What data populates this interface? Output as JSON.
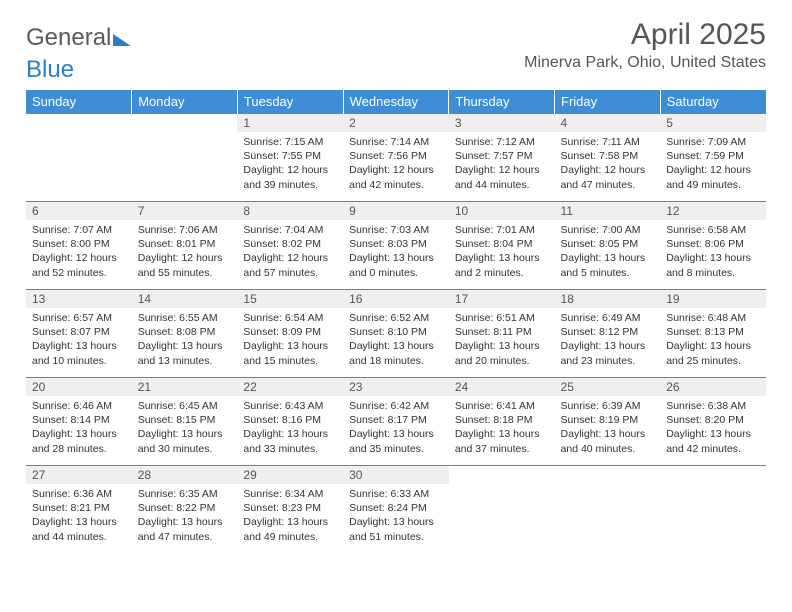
{
  "logo": {
    "text_gray": "General",
    "text_blue": "Blue"
  },
  "title": {
    "month": "April 2025",
    "location": "Minerva Park, Ohio, United States"
  },
  "colors": {
    "header_bg": "#3f8dd6",
    "daynum_bg": "#efefef",
    "border": "#3f8dd6"
  },
  "weekdays": [
    "Sunday",
    "Monday",
    "Tuesday",
    "Wednesday",
    "Thursday",
    "Friday",
    "Saturday"
  ],
  "weeks": [
    [
      {
        "empty": true
      },
      {
        "empty": true
      },
      {
        "day": "1",
        "sunrise": "Sunrise: 7:15 AM",
        "sunset": "Sunset: 7:55 PM",
        "dl1": "Daylight: 12 hours",
        "dl2": "and 39 minutes."
      },
      {
        "day": "2",
        "sunrise": "Sunrise: 7:14 AM",
        "sunset": "Sunset: 7:56 PM",
        "dl1": "Daylight: 12 hours",
        "dl2": "and 42 minutes."
      },
      {
        "day": "3",
        "sunrise": "Sunrise: 7:12 AM",
        "sunset": "Sunset: 7:57 PM",
        "dl1": "Daylight: 12 hours",
        "dl2": "and 44 minutes."
      },
      {
        "day": "4",
        "sunrise": "Sunrise: 7:11 AM",
        "sunset": "Sunset: 7:58 PM",
        "dl1": "Daylight: 12 hours",
        "dl2": "and 47 minutes."
      },
      {
        "day": "5",
        "sunrise": "Sunrise: 7:09 AM",
        "sunset": "Sunset: 7:59 PM",
        "dl1": "Daylight: 12 hours",
        "dl2": "and 49 minutes."
      }
    ],
    [
      {
        "day": "6",
        "sunrise": "Sunrise: 7:07 AM",
        "sunset": "Sunset: 8:00 PM",
        "dl1": "Daylight: 12 hours",
        "dl2": "and 52 minutes."
      },
      {
        "day": "7",
        "sunrise": "Sunrise: 7:06 AM",
        "sunset": "Sunset: 8:01 PM",
        "dl1": "Daylight: 12 hours",
        "dl2": "and 55 minutes."
      },
      {
        "day": "8",
        "sunrise": "Sunrise: 7:04 AM",
        "sunset": "Sunset: 8:02 PM",
        "dl1": "Daylight: 12 hours",
        "dl2": "and 57 minutes."
      },
      {
        "day": "9",
        "sunrise": "Sunrise: 7:03 AM",
        "sunset": "Sunset: 8:03 PM",
        "dl1": "Daylight: 13 hours",
        "dl2": "and 0 minutes."
      },
      {
        "day": "10",
        "sunrise": "Sunrise: 7:01 AM",
        "sunset": "Sunset: 8:04 PM",
        "dl1": "Daylight: 13 hours",
        "dl2": "and 2 minutes."
      },
      {
        "day": "11",
        "sunrise": "Sunrise: 7:00 AM",
        "sunset": "Sunset: 8:05 PM",
        "dl1": "Daylight: 13 hours",
        "dl2": "and 5 minutes."
      },
      {
        "day": "12",
        "sunrise": "Sunrise: 6:58 AM",
        "sunset": "Sunset: 8:06 PM",
        "dl1": "Daylight: 13 hours",
        "dl2": "and 8 minutes."
      }
    ],
    [
      {
        "day": "13",
        "sunrise": "Sunrise: 6:57 AM",
        "sunset": "Sunset: 8:07 PM",
        "dl1": "Daylight: 13 hours",
        "dl2": "and 10 minutes."
      },
      {
        "day": "14",
        "sunrise": "Sunrise: 6:55 AM",
        "sunset": "Sunset: 8:08 PM",
        "dl1": "Daylight: 13 hours",
        "dl2": "and 13 minutes."
      },
      {
        "day": "15",
        "sunrise": "Sunrise: 6:54 AM",
        "sunset": "Sunset: 8:09 PM",
        "dl1": "Daylight: 13 hours",
        "dl2": "and 15 minutes."
      },
      {
        "day": "16",
        "sunrise": "Sunrise: 6:52 AM",
        "sunset": "Sunset: 8:10 PM",
        "dl1": "Daylight: 13 hours",
        "dl2": "and 18 minutes."
      },
      {
        "day": "17",
        "sunrise": "Sunrise: 6:51 AM",
        "sunset": "Sunset: 8:11 PM",
        "dl1": "Daylight: 13 hours",
        "dl2": "and 20 minutes."
      },
      {
        "day": "18",
        "sunrise": "Sunrise: 6:49 AM",
        "sunset": "Sunset: 8:12 PM",
        "dl1": "Daylight: 13 hours",
        "dl2": "and 23 minutes."
      },
      {
        "day": "19",
        "sunrise": "Sunrise: 6:48 AM",
        "sunset": "Sunset: 8:13 PM",
        "dl1": "Daylight: 13 hours",
        "dl2": "and 25 minutes."
      }
    ],
    [
      {
        "day": "20",
        "sunrise": "Sunrise: 6:46 AM",
        "sunset": "Sunset: 8:14 PM",
        "dl1": "Daylight: 13 hours",
        "dl2": "and 28 minutes."
      },
      {
        "day": "21",
        "sunrise": "Sunrise: 6:45 AM",
        "sunset": "Sunset: 8:15 PM",
        "dl1": "Daylight: 13 hours",
        "dl2": "and 30 minutes."
      },
      {
        "day": "22",
        "sunrise": "Sunrise: 6:43 AM",
        "sunset": "Sunset: 8:16 PM",
        "dl1": "Daylight: 13 hours",
        "dl2": "and 33 minutes."
      },
      {
        "day": "23",
        "sunrise": "Sunrise: 6:42 AM",
        "sunset": "Sunset: 8:17 PM",
        "dl1": "Daylight: 13 hours",
        "dl2": "and 35 minutes."
      },
      {
        "day": "24",
        "sunrise": "Sunrise: 6:41 AM",
        "sunset": "Sunset: 8:18 PM",
        "dl1": "Daylight: 13 hours",
        "dl2": "and 37 minutes."
      },
      {
        "day": "25",
        "sunrise": "Sunrise: 6:39 AM",
        "sunset": "Sunset: 8:19 PM",
        "dl1": "Daylight: 13 hours",
        "dl2": "and 40 minutes."
      },
      {
        "day": "26",
        "sunrise": "Sunrise: 6:38 AM",
        "sunset": "Sunset: 8:20 PM",
        "dl1": "Daylight: 13 hours",
        "dl2": "and 42 minutes."
      }
    ],
    [
      {
        "day": "27",
        "sunrise": "Sunrise: 6:36 AM",
        "sunset": "Sunset: 8:21 PM",
        "dl1": "Daylight: 13 hours",
        "dl2": "and 44 minutes."
      },
      {
        "day": "28",
        "sunrise": "Sunrise: 6:35 AM",
        "sunset": "Sunset: 8:22 PM",
        "dl1": "Daylight: 13 hours",
        "dl2": "and 47 minutes."
      },
      {
        "day": "29",
        "sunrise": "Sunrise: 6:34 AM",
        "sunset": "Sunset: 8:23 PM",
        "dl1": "Daylight: 13 hours",
        "dl2": "and 49 minutes."
      },
      {
        "day": "30",
        "sunrise": "Sunrise: 6:33 AM",
        "sunset": "Sunset: 8:24 PM",
        "dl1": "Daylight: 13 hours",
        "dl2": "and 51 minutes."
      },
      {
        "empty": true
      },
      {
        "empty": true
      },
      {
        "empty": true
      }
    ]
  ]
}
